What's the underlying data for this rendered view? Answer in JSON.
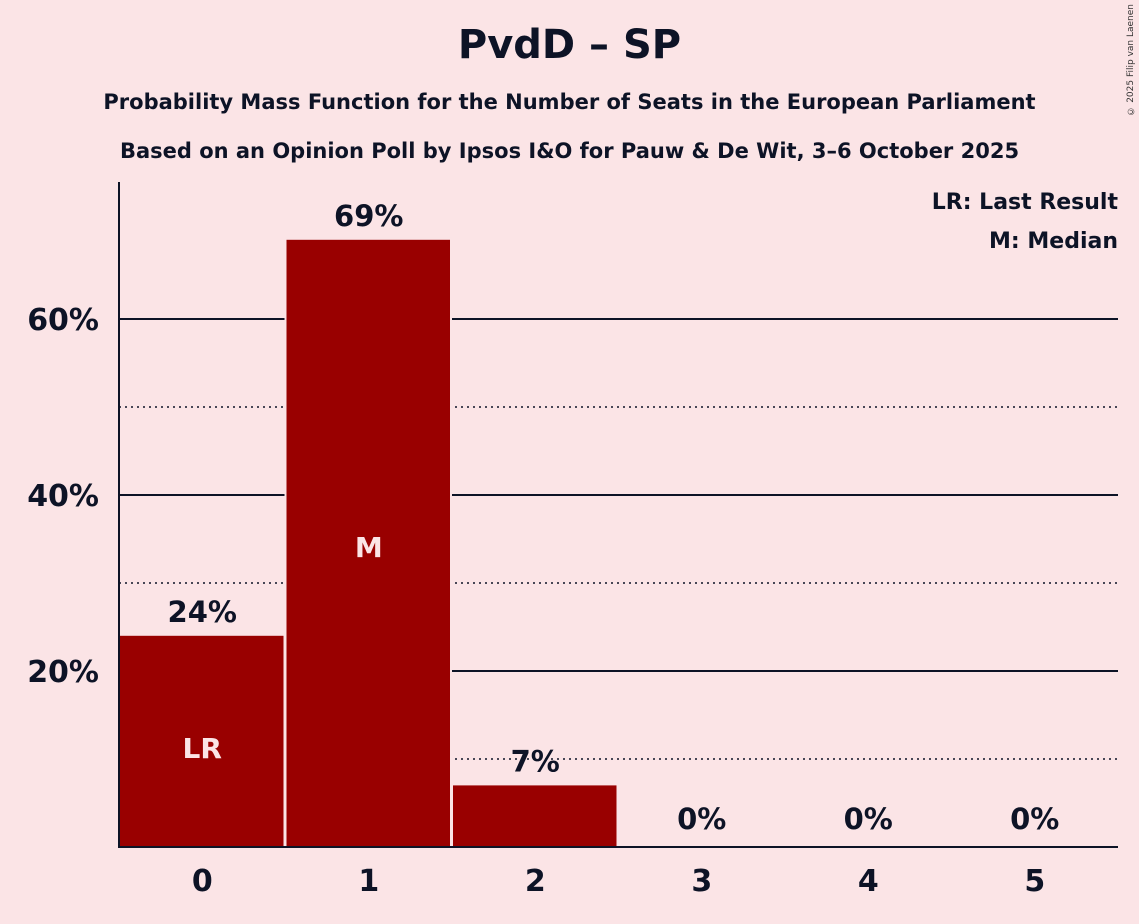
{
  "chart_data": {
    "type": "bar",
    "title": "PvdD – SP",
    "subtitle1": "Probability Mass Function for the Number of Seats in the European Parliament",
    "subtitle2": "Based on an Opinion Poll by Ipsos I&O for Pauw & De Wit, 3–6 October 2025",
    "copyright": "© 2025 Filip van Laenen",
    "categories": [
      "0",
      "1",
      "2",
      "3",
      "4",
      "5"
    ],
    "values": [
      24,
      69,
      7,
      0,
      0,
      0
    ],
    "value_labels": [
      "24%",
      "69%",
      "7%",
      "0%",
      "0%",
      "0%"
    ],
    "bar_markers": {
      "0": "LR",
      "1": "M"
    },
    "ylim": [
      0,
      75
    ],
    "yticks": [
      20,
      40,
      60
    ],
    "ytick_labels": [
      "20%",
      "40%",
      "60%"
    ],
    "minor_gridlines": [
      10,
      30,
      50
    ],
    "legend": [
      "LR: Last Result",
      "M: Median"
    ],
    "legend_position": "top-right",
    "bar_color": "#990000",
    "xlabel": "",
    "ylabel": ""
  }
}
